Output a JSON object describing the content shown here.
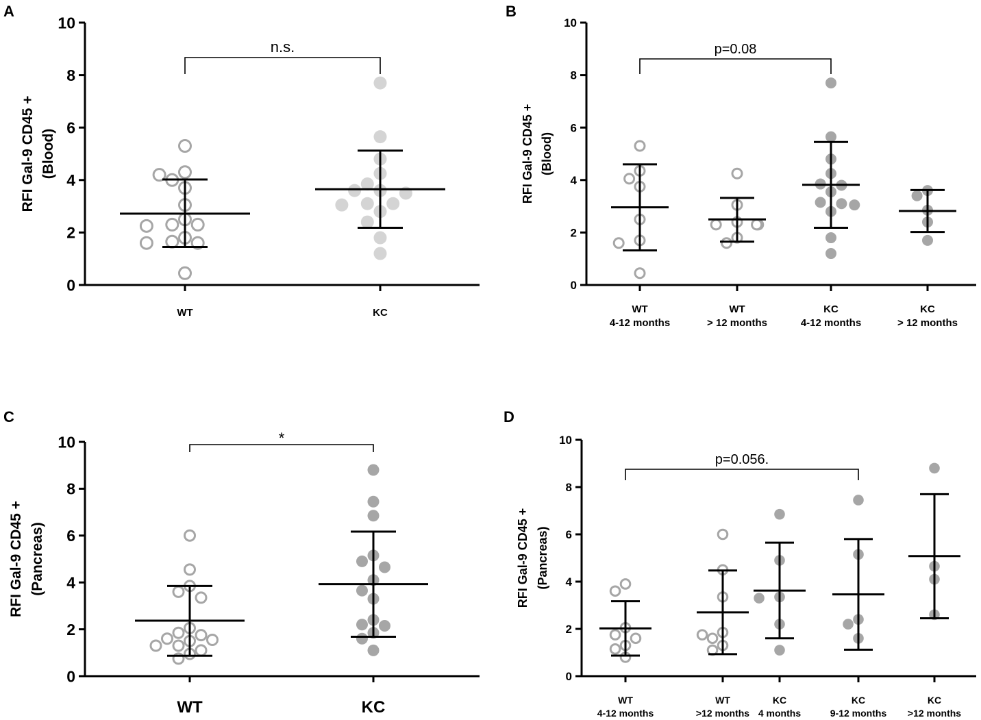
{
  "colors": {
    "axis": "#000000",
    "wt_marker": "#a6a6a6",
    "kc_light": "#d4d4d4",
    "kc_dark": "#a6a6a6",
    "error_bar": "#000000"
  },
  "chart_data": [
    {
      "panel": "A",
      "type": "scatter",
      "ylabel_line1": "RFI Gal-9 CD45 +",
      "ylabel_line2": "(Blood)",
      "ylim": [
        0,
        10
      ],
      "yticks": [
        "0",
        "2",
        "4",
        "6",
        "8",
        "10"
      ],
      "annotation": "n.s.",
      "comparison": [
        0,
        1
      ],
      "groups": [
        {
          "label_lines": [
            "WT"
          ],
          "marker": "open",
          "color": "#a6a6a6",
          "values": [
            5.3,
            4.2,
            4.3,
            4.0,
            3.7,
            3.05,
            2.5,
            2.3,
            2.3,
            2.25,
            1.8,
            1.65,
            1.6,
            1.6,
            0.45
          ],
          "mean": 2.72,
          "sd_low": 1.45,
          "sd_high": 4.02
        },
        {
          "label_lines": [
            "KC"
          ],
          "marker": "filled",
          "color": "#d4d4d4",
          "values": [
            7.7,
            5.65,
            4.8,
            4.25,
            3.85,
            3.6,
            3.6,
            3.5,
            3.1,
            3.1,
            3.05,
            2.8,
            2.4,
            1.8,
            1.2
          ],
          "mean": 3.65,
          "sd_low": 2.18,
          "sd_high": 5.12
        }
      ]
    },
    {
      "panel": "B",
      "type": "scatter",
      "ylabel_line1": "RFI Gal-9 CD45 +",
      "ylabel_line2": "(Blood)",
      "ylim": [
        0,
        10
      ],
      "yticks": [
        "0",
        "2",
        "4",
        "6",
        "8",
        "10"
      ],
      "annotation": "p=0.08",
      "comparison": [
        0,
        2
      ],
      "groups": [
        {
          "label_lines": [
            "WT",
            "4-12 months"
          ],
          "marker": "open",
          "color": "#a6a6a6",
          "values": [
            5.3,
            4.35,
            4.05,
            3.75,
            2.5,
            1.7,
            1.6,
            0.45
          ],
          "mean": 2.96,
          "sd_low": 1.32,
          "sd_high": 4.6
        },
        {
          "label_lines": [
            "WT",
            "> 12 months"
          ],
          "marker": "open",
          "color": "#a6a6a6",
          "values": [
            4.25,
            3.05,
            2.4,
            2.3,
            2.3,
            2.3,
            1.8,
            1.6
          ],
          "mean": 2.5,
          "sd_low": 1.65,
          "sd_high": 3.32
        },
        {
          "label_lines": [
            "KC",
            "4-12 months"
          ],
          "marker": "filled",
          "color": "#a6a6a6",
          "values": [
            7.7,
            5.65,
            4.8,
            4.25,
            3.85,
            3.8,
            3.55,
            3.1,
            3.15,
            3.05,
            2.8,
            1.8,
            1.2
          ],
          "mean": 3.82,
          "sd_low": 2.18,
          "sd_high": 5.45
        },
        {
          "label_lines": [
            "KC",
            "> 12 months"
          ],
          "marker": "filled",
          "color": "#a6a6a6",
          "values": [
            3.6,
            3.4,
            2.85,
            2.4,
            1.7
          ],
          "mean": 2.82,
          "sd_low": 2.02,
          "sd_high": 3.62
        }
      ]
    },
    {
      "panel": "C",
      "type": "scatter",
      "ylabel_line1": "RFI Gal-9 CD45 +",
      "ylabel_line2": "(Pancreas)",
      "ylim": [
        0,
        10
      ],
      "yticks": [
        "0",
        "2",
        "4",
        "6",
        "8",
        "10"
      ],
      "annotation": "*",
      "comparison": [
        0,
        1
      ],
      "groups": [
        {
          "label_lines": [
            "WT"
          ],
          "marker": "open",
          "color": "#a6a6a6",
          "values": [
            6.0,
            4.55,
            3.85,
            3.6,
            3.35,
            2.05,
            1.85,
            1.75,
            1.6,
            1.55,
            1.5,
            1.3,
            1.3,
            1.1,
            0.95,
            0.75
          ],
          "mean": 2.37,
          "sd_low": 0.87,
          "sd_high": 3.85
        },
        {
          "label_lines": [
            "KC"
          ],
          "marker": "filled",
          "color": "#a6a6a6",
          "values": [
            8.8,
            7.45,
            6.85,
            5.15,
            4.9,
            4.65,
            4.1,
            3.65,
            3.3,
            2.4,
            2.2,
            2.15,
            1.85,
            1.6,
            1.1
          ],
          "mean": 3.93,
          "sd_low": 1.68,
          "sd_high": 6.17
        }
      ]
    },
    {
      "panel": "D",
      "type": "scatter",
      "ylabel_line1": "RFI Gal-9 CD45 +",
      "ylabel_line2": "(Pancreas)",
      "ylim": [
        0,
        10
      ],
      "yticks": [
        "0",
        "2",
        "4",
        "6",
        "8",
        "10"
      ],
      "annotation": "p=0.056.",
      "comparison": [
        0,
        3
      ],
      "groups": [
        {
          "label_lines": [
            "WT",
            "4-12 months"
          ],
          "marker": "open",
          "color": "#a6a6a6",
          "values": [
            3.9,
            3.6,
            2.05,
            1.75,
            1.6,
            1.3,
            1.15,
            0.8
          ],
          "mean": 2.02,
          "sd_low": 0.87,
          "sd_high": 3.17
        },
        {
          "label_lines": [
            "WT",
            ">12 months"
          ],
          "marker": "open",
          "color": "#a6a6a6",
          "values": [
            6.0,
            4.5,
            3.35,
            1.85,
            1.75,
            1.6,
            1.3,
            1.1
          ],
          "mean": 2.7,
          "sd_low": 0.93,
          "sd_high": 4.47
        },
        {
          "label_lines": [
            "KC",
            "4 months"
          ],
          "marker": "filled",
          "color": "#a6a6a6",
          "values": [
            6.85,
            4.9,
            3.35,
            3.3,
            2.2,
            1.1
          ],
          "mean": 3.62,
          "sd_low": 1.6,
          "sd_high": 5.65
        },
        {
          "label_lines": [
            "KC",
            "9-12 months"
          ],
          "marker": "filled",
          "color": "#a6a6a6",
          "values": [
            7.45,
            5.15,
            2.4,
            2.2,
            1.6
          ],
          "mean": 3.46,
          "sd_low": 1.12,
          "sd_high": 5.8
        },
        {
          "label_lines": [
            "KC",
            ">12 months"
          ],
          "marker": "filled",
          "color": "#a6a6a6",
          "values": [
            8.8,
            4.65,
            4.1,
            2.6
          ],
          "mean": 5.08,
          "sd_low": 2.45,
          "sd_high": 7.7
        }
      ]
    }
  ]
}
